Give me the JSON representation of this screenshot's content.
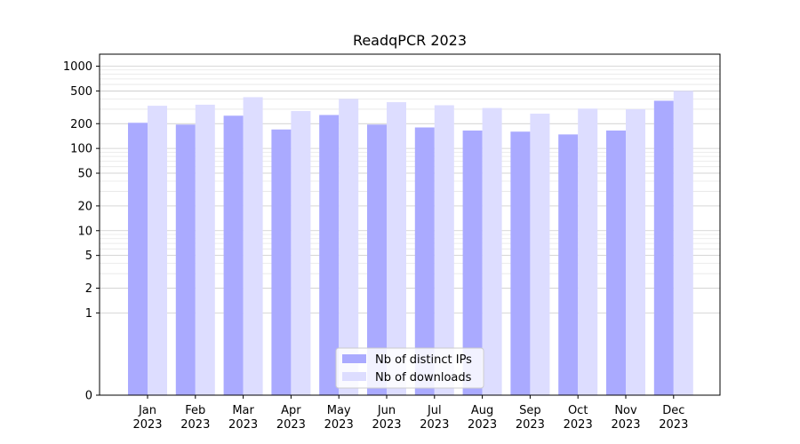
{
  "chart_data": {
    "type": "bar",
    "title": "ReadqPCR 2023",
    "xlabel": "",
    "ylabel": "",
    "y_scale": "symlog",
    "ylim": [
      0,
      1400
    ],
    "y_ticks": [
      0,
      1,
      2,
      5,
      10,
      20,
      50,
      100,
      200,
      500,
      1000
    ],
    "grid": true,
    "legend_position": "bottom-center",
    "categories": [
      [
        "Jan",
        "2023"
      ],
      [
        "Feb",
        "2023"
      ],
      [
        "Mar",
        "2023"
      ],
      [
        "Apr",
        "2023"
      ],
      [
        "May",
        "2023"
      ],
      [
        "Jun",
        "2023"
      ],
      [
        "Jul",
        "2023"
      ],
      [
        "Aug",
        "2023"
      ],
      [
        "Sep",
        "2023"
      ],
      [
        "Oct",
        "2023"
      ],
      [
        "Nov",
        "2023"
      ],
      [
        "Dec",
        "2023"
      ]
    ],
    "series": [
      {
        "name": "Nb of distinct IPs",
        "color": "#aaaaff",
        "values": [
          205,
          195,
          250,
          170,
          255,
          195,
          180,
          165,
          160,
          148,
          165,
          380
        ]
      },
      {
        "name": "Nb of downloads",
        "color": "#ddddff",
        "values": [
          330,
          340,
          420,
          285,
          400,
          365,
          335,
          310,
          265,
          305,
          300,
          500
        ]
      }
    ]
  }
}
